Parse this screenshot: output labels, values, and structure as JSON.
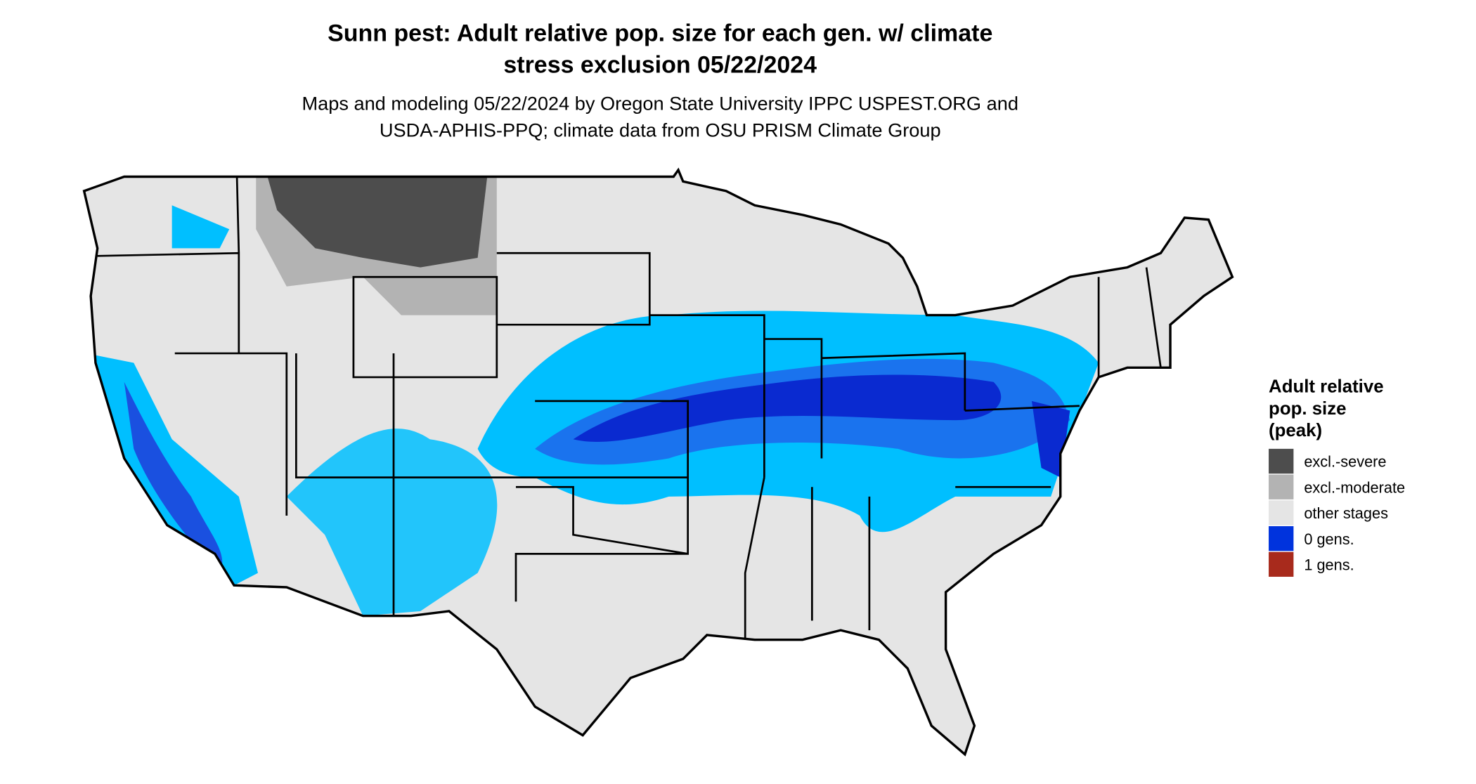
{
  "title": [
    "Sunn pest: Adult relative pop. size for each gen. w/ climate",
    "stress exclusion 05/22/2024"
  ],
  "subtitle": [
    "Maps and modeling 05/22/2024 by Oregon State University IPPC USPEST.ORG and",
    "USDA-APHIS-PPQ; climate data from OSU PRISM Climate Group"
  ],
  "legend": {
    "title": [
      "Adult relative",
      "pop. size",
      "(peak)"
    ],
    "items": [
      {
        "label": "excl.-severe",
        "color": "#4d4d4d"
      },
      {
        "label": "excl.-moderate",
        "color": "#b3b3b3"
      },
      {
        "label": "other stages",
        "color": "#e5e5e5"
      },
      {
        "label": "0 gens.",
        "color": "#0033dd"
      },
      {
        "label": "1 gens.",
        "color": "#a82a1c"
      }
    ]
  }
}
